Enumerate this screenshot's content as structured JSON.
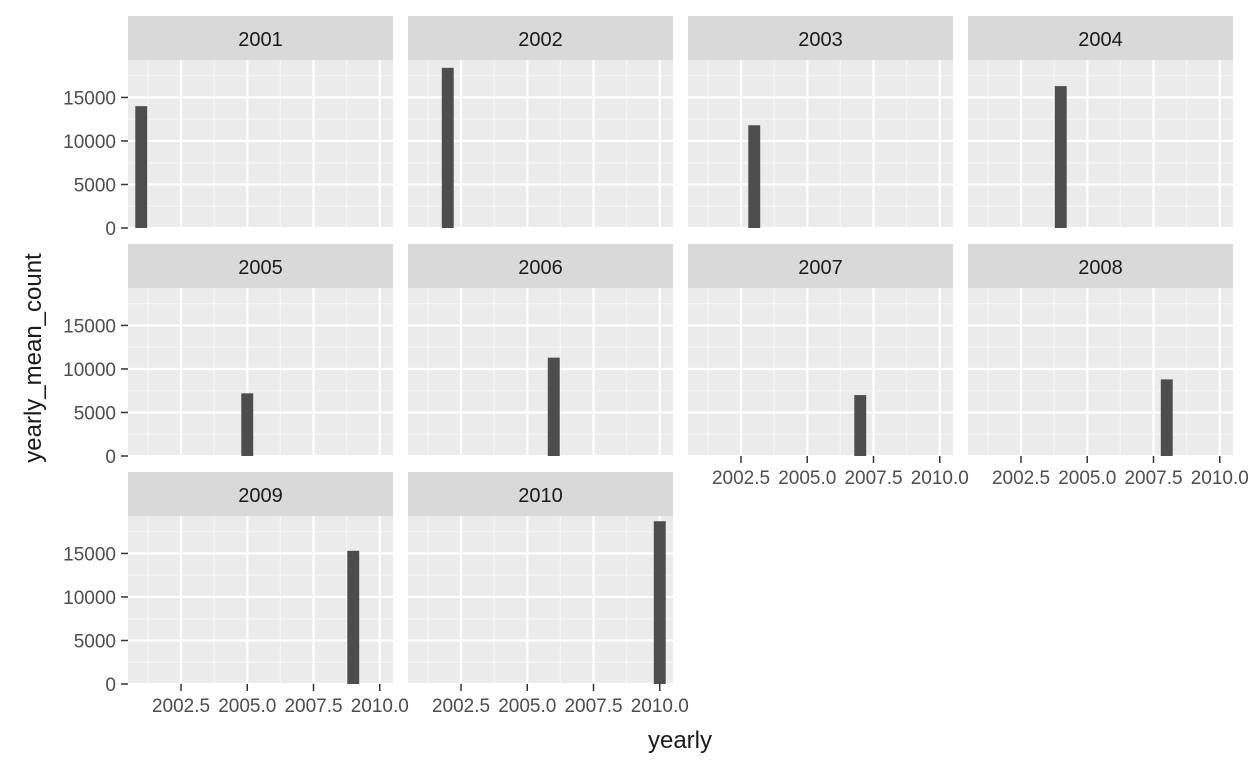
{
  "chart_data": {
    "type": "bar",
    "layout": "facet_wrap",
    "xlabel": "yearly",
    "ylabel": "yearly_mean_count",
    "xlim": [
      2000.5,
      2010.5
    ],
    "ylim": [
      0,
      19300
    ],
    "x_ticks": [
      2002.5,
      2005.0,
      2007.5,
      2010.0
    ],
    "x_tick_labels": [
      "2002.5",
      "2005.0",
      "2007.5",
      "2010.0"
    ],
    "y_ticks": [
      0,
      5000,
      10000,
      15000
    ],
    "y_tick_labels": [
      "0",
      "5000",
      "10000",
      "15000"
    ],
    "grid": true,
    "colors": {
      "bar": "#4d4d4d",
      "panel_bg": "#ebebeb",
      "strip_bg": "#d9d9d9",
      "grid": "#ffffff",
      "text": "#4d4d4d",
      "title_text": "#1a1a1a"
    },
    "panels": [
      {
        "label": "2001",
        "x": 2001,
        "y": 14000
      },
      {
        "label": "2002",
        "x": 2002,
        "y": 18400
      },
      {
        "label": "2003",
        "x": 2003,
        "y": 11800
      },
      {
        "label": "2004",
        "x": 2004,
        "y": 16300
      },
      {
        "label": "2005",
        "x": 2005,
        "y": 7200
      },
      {
        "label": "2006",
        "x": 2006,
        "y": 11300
      },
      {
        "label": "2007",
        "x": 2007,
        "y": 7000
      },
      {
        "label": "2008",
        "x": 2008,
        "y": 8800
      },
      {
        "label": "2009",
        "x": 2009,
        "y": 15300
      },
      {
        "label": "2010",
        "x": 2010,
        "y": 18700
      }
    ]
  }
}
